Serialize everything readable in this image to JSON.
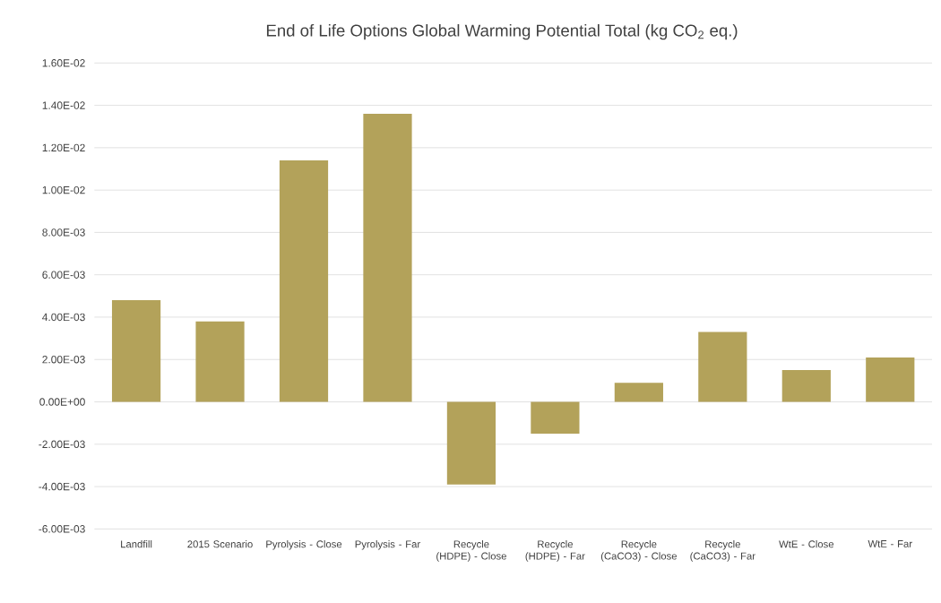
{
  "chart_data": {
    "type": "bar",
    "title": "End of Life Options Global Warming Potential Total (kg CO$_{2}$ eq.)",
    "categories": [
      "Landfill",
      "2015 Scenario",
      "Pyrolysis - Close",
      "Pyrolysis - Far",
      "Recycle (HDPE) - Close",
      "Recycle (HDPE) - Far",
      "Recycle (CaCO3) - Close",
      "Recycle (CaCO3) - Far",
      "WtE - Close",
      "WtE - Far"
    ],
    "values": [
      0.0048,
      0.0038,
      0.0114,
      0.0136,
      -0.0039,
      -0.0015,
      0.0009,
      0.0033,
      0.0015,
      0.0021
    ],
    "color": "#b3a25a",
    "ylim": [
      -0.006,
      0.016
    ],
    "yticks": [
      {
        "value": -0.006,
        "label": "-6.00E-03"
      },
      {
        "value": -0.004,
        "label": "-4.00E-03"
      },
      {
        "value": -0.002,
        "label": "-2.00E-03"
      },
      {
        "value": 0,
        "label": "0.00E+00"
      },
      {
        "value": 0.002,
        "label": "2.00E-03"
      },
      {
        "value": 0.004,
        "label": "4.00E-03"
      },
      {
        "value": 0.006,
        "label": "6.00E-03"
      },
      {
        "value": 0.008,
        "label": "8.00E-03"
      },
      {
        "value": 0.01,
        "label": "1.00E-02"
      },
      {
        "value": 0.012,
        "label": "1.20E-02"
      },
      {
        "value": 0.014,
        "label": "1.40E-02"
      },
      {
        "value": 0.016,
        "label": "1.60E-02"
      }
    ],
    "grid": "y"
  }
}
